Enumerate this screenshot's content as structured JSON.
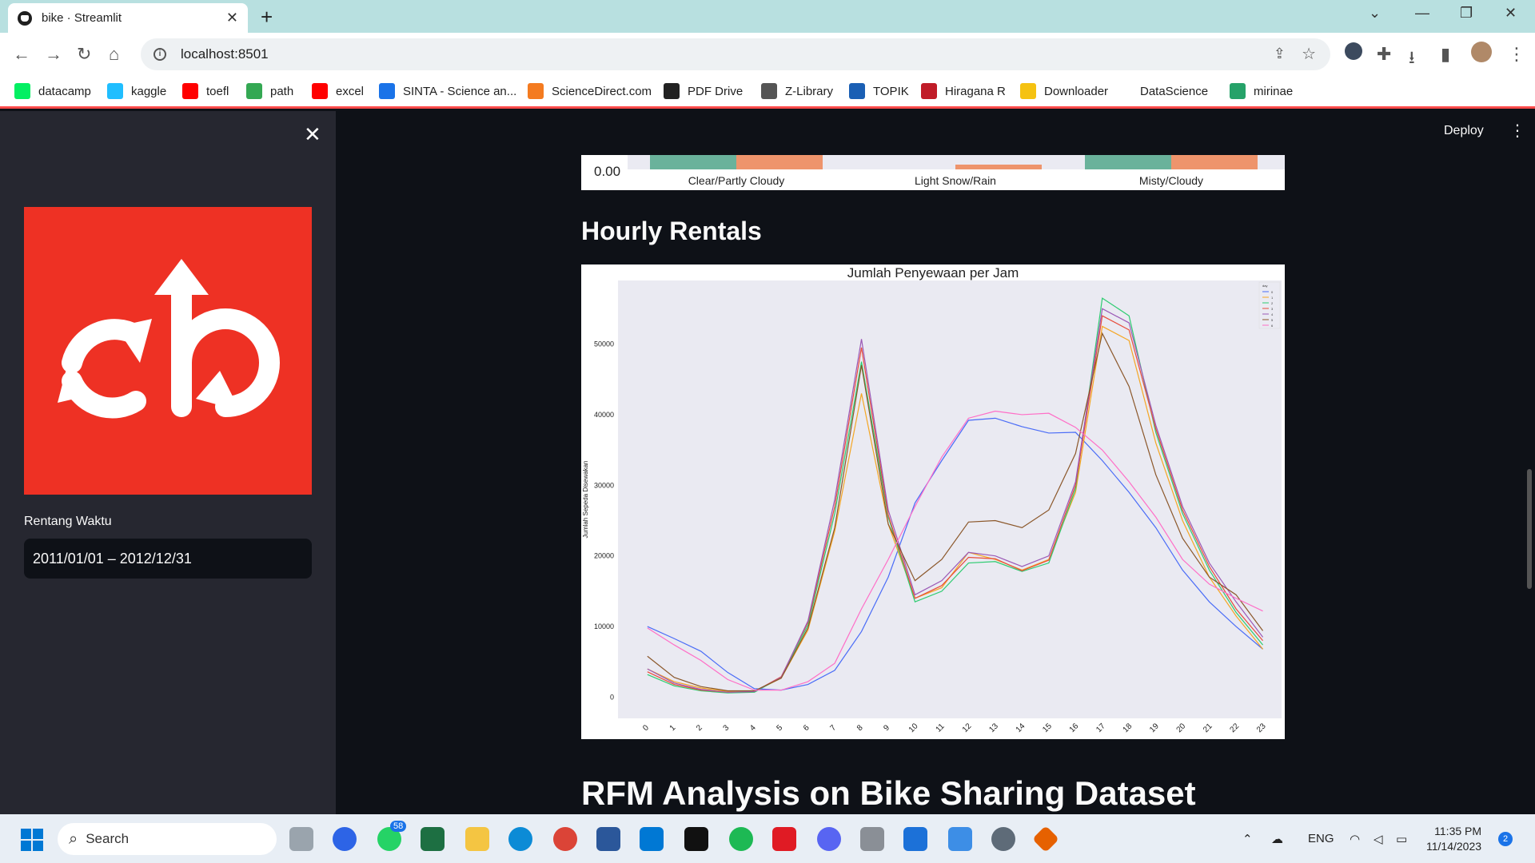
{
  "browser": {
    "tab_title": "bike · Streamlit",
    "tab_close": "✕",
    "new_tab": "+",
    "url": "localhost:8501"
  },
  "bookmarks": [
    {
      "label": "datacamp",
      "icon": "datacamp-icon",
      "color": "#03ef62"
    },
    {
      "label": "kaggle",
      "icon": "kaggle-icon",
      "color": "#20beff"
    },
    {
      "label": "toefl",
      "icon": "youtube-icon",
      "color": "#ff0000"
    },
    {
      "label": "path",
      "icon": "plus-icon",
      "color": "#34a853"
    },
    {
      "label": "excel",
      "icon": "youtube-icon",
      "color": "#ff0000"
    },
    {
      "label": "SINTA - Science an...",
      "icon": "sinta-icon",
      "color": "#1a73e8"
    },
    {
      "label": "ScienceDirect.com",
      "icon": "elsevier-icon",
      "color": "#f47b20"
    },
    {
      "label": "PDF Drive",
      "icon": "pdfdrive-icon",
      "color": "#222222"
    },
    {
      "label": "Z-Library",
      "icon": "zlibrary-icon",
      "color": "#555555"
    },
    {
      "label": "TOPIK",
      "icon": "topik-icon",
      "color": "#1a5fb4"
    },
    {
      "label": "Hiragana R",
      "icon": "hiragana-icon",
      "color": "#c01c28"
    },
    {
      "label": "Downloader",
      "icon": "downloader-icon",
      "color": "#f5c211"
    },
    {
      "label": "DataScience",
      "icon": "folder-icon",
      "color": "#ffffff"
    },
    {
      "label": "mirinae",
      "icon": "mirinae-icon",
      "color": "#26a269"
    }
  ],
  "sidebar": {
    "close": "✕",
    "date_label": "Rentang Waktu",
    "date_value": "2011/01/01 – 2012/12/31"
  },
  "header": {
    "deploy": "Deploy",
    "menu": "⋮"
  },
  "weather_chart": {
    "y_tick": "0.00",
    "categories": [
      "Clear/Partly Cloudy",
      "Light Snow/Rain",
      "Misty/Cloudy"
    ]
  },
  "sections": {
    "hourly": "Hourly Rentals",
    "rfm": "RFM Analysis on Bike Sharing Dataset"
  },
  "chart_data": {
    "type": "line",
    "title": "Jumlah Penyewaan per Jam",
    "xlabel": "",
    "ylabel": "Jumlah Sepeda Disewakan",
    "legend_title": "day",
    "legend_position": "top-right",
    "x": [
      0,
      1,
      2,
      3,
      4,
      5,
      6,
      7,
      8,
      9,
      10,
      11,
      12,
      13,
      14,
      15,
      16,
      17,
      18,
      19,
      20,
      21,
      22,
      23
    ],
    "ylim": [
      -3000,
      59000
    ],
    "y_ticks": [
      0,
      10000,
      20000,
      30000,
      40000,
      50000
    ],
    "grid": false,
    "series": [
      {
        "name": "0",
        "color": "#4a6cf7",
        "values": [
          10000,
          8300,
          6500,
          3500,
          1200,
          1000,
          1800,
          3800,
          9300,
          17000,
          27500,
          33500,
          39200,
          39500,
          38300,
          37400,
          37500,
          33500,
          29000,
          24000,
          18000,
          13500,
          10000,
          6800
        ]
      },
      {
        "name": "1",
        "color": "#f5a623",
        "values": [
          4000,
          2200,
          1300,
          800,
          800,
          2700,
          9500,
          23500,
          43000,
          24500,
          14000,
          15500,
          20500,
          19500,
          18000,
          19500,
          29000,
          52500,
          50500,
          36000,
          25000,
          17000,
          11500,
          6800
        ]
      },
      {
        "name": "2",
        "color": "#2ecc71",
        "values": [
          3200,
          1600,
          900,
          600,
          700,
          2800,
          10200,
          26000,
          47500,
          25500,
          13500,
          15000,
          19000,
          19200,
          17800,
          19000,
          29500,
          56500,
          54000,
          37500,
          26000,
          18000,
          12000,
          7400
        ]
      },
      {
        "name": "3",
        "color": "#e74c3c",
        "values": [
          3600,
          1800,
          1000,
          700,
          800,
          2900,
          10600,
          27000,
          49500,
          25800,
          14000,
          15800,
          19800,
          19600,
          17900,
          19400,
          30000,
          54000,
          52000,
          38000,
          26500,
          18500,
          12500,
          8000
        ]
      },
      {
        "name": "4",
        "color": "#9b59b6",
        "values": [
          4000,
          2000,
          1100,
          700,
          800,
          2800,
          10800,
          28000,
          50700,
          26500,
          14500,
          16500,
          20500,
          20000,
          18500,
          20000,
          30500,
          55000,
          53000,
          38500,
          27000,
          19000,
          13500,
          8500
        ]
      },
      {
        "name": "5",
        "color": "#8b572a",
        "values": [
          5800,
          2800,
          1500,
          900,
          900,
          2700,
          9800,
          24000,
          47000,
          24500,
          16500,
          19500,
          24800,
          25000,
          24000,
          26500,
          34500,
          51500,
          44000,
          31500,
          22500,
          17000,
          14500,
          9400
        ]
      },
      {
        "name": "6",
        "color": "#ff6ec7",
        "values": [
          9800,
          7400,
          5200,
          2500,
          1000,
          1000,
          2200,
          4800,
          12500,
          19500,
          27000,
          34000,
          39500,
          40500,
          40000,
          40200,
          38200,
          35000,
          30500,
          25500,
          19500,
          16000,
          14000,
          12200
        ]
      }
    ]
  },
  "taskbar": {
    "search": "Search",
    "badge": "58",
    "lang": "ENG",
    "time": "11:35 PM",
    "date": "11/14/2023",
    "notif": "2"
  }
}
